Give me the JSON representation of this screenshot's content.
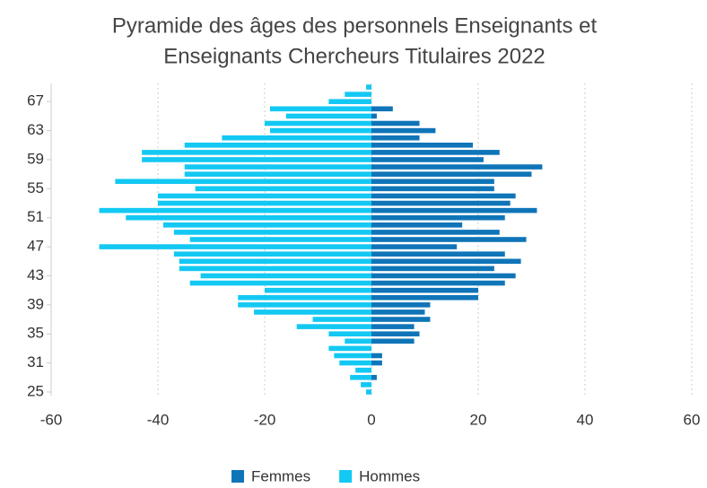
{
  "chart_data": {
    "type": "pyramid",
    "title": [
      "Pyramide des âges des personnels Enseignants et",
      "Enseignants Chercheurs Titulaires 2022"
    ],
    "categories": [
      "25",
      null,
      null,
      null,
      "31",
      null,
      null,
      null,
      "35",
      null,
      null,
      null,
      "39",
      null,
      null,
      null,
      "43",
      null,
      null,
      null,
      "47",
      null,
      null,
      null,
      "51",
      null,
      null,
      null,
      "55",
      null,
      null,
      null,
      "59",
      null,
      null,
      null,
      "63",
      null,
      null,
      null,
      "67",
      null,
      null
    ],
    "series": [
      {
        "name": "Femmes",
        "color": "#0f75b8",
        "values": [
          0,
          0,
          1,
          0,
          2,
          2,
          0,
          8,
          9,
          8,
          11,
          10,
          11,
          20,
          20,
          25,
          27,
          23,
          28,
          25,
          16,
          29,
          24,
          17,
          25,
          31,
          26,
          27,
          23,
          23,
          30,
          32,
          21,
          24,
          19,
          9,
          12,
          9,
          1,
          4,
          0,
          0,
          0
        ]
      },
      {
        "name": "Hommes",
        "color": "#13c8f3",
        "values": [
          -1,
          -2,
          -4,
          -3,
          -6,
          -7,
          -8,
          -5,
          -8,
          -14,
          -11,
          -22,
          -25,
          -25,
          -20,
          -34,
          -32,
          -36,
          -36,
          -37,
          -51,
          -34,
          -37,
          -39,
          -46,
          -51,
          -40,
          -40,
          -33,
          -48,
          -35,
          -35,
          -43,
          -43,
          -35,
          -28,
          -19,
          -20,
          -16,
          -19,
          -8,
          -5,
          -1
        ]
      }
    ],
    "xlim": [
      -60,
      60
    ],
    "xticks": [
      -60,
      -40,
      -20,
      0,
      20,
      40,
      60
    ],
    "grid": true,
    "legend": "bottom"
  }
}
